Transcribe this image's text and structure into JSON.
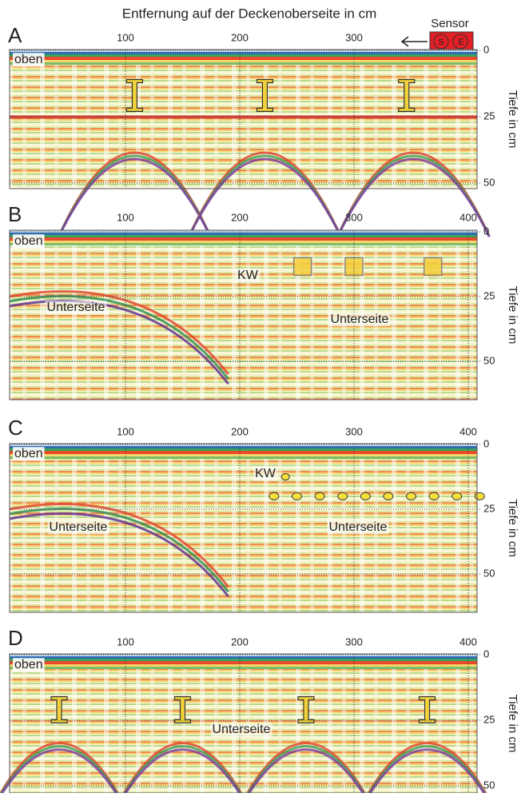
{
  "title": "Entfernung auf der Deckenoberseite in cm",
  "sensor": {
    "label": "Sensor",
    "left": "S",
    "right": "E"
  },
  "panels": [
    {
      "letter": "A",
      "xticks": [
        100,
        200,
        300
      ],
      "yticks": [
        0,
        25,
        50
      ],
      "y_label": "Tiefe in cm",
      "labels": [
        "oben"
      ]
    },
    {
      "letter": "B",
      "xticks": [
        100,
        200,
        300,
        400
      ],
      "yticks": [
        0,
        25,
        50
      ],
      "y_label": "Tiefe in cm",
      "labels": [
        "oben",
        "KW",
        "Unterseite",
        "Unterseite"
      ]
    },
    {
      "letter": "C",
      "xticks": [
        100,
        200,
        300,
        400
      ],
      "yticks": [
        0,
        25,
        50
      ],
      "y_label": "Tiefe in cm",
      "labels": [
        "oben",
        "KW",
        "Unterseite",
        "Unterseite"
      ]
    },
    {
      "letter": "D",
      "xticks": [
        100,
        200,
        300,
        400
      ],
      "yticks": [
        0,
        25,
        50
      ],
      "y_label": "Tiefe in cm",
      "labels": [
        "oben",
        "Unterseite"
      ]
    }
  ]
}
